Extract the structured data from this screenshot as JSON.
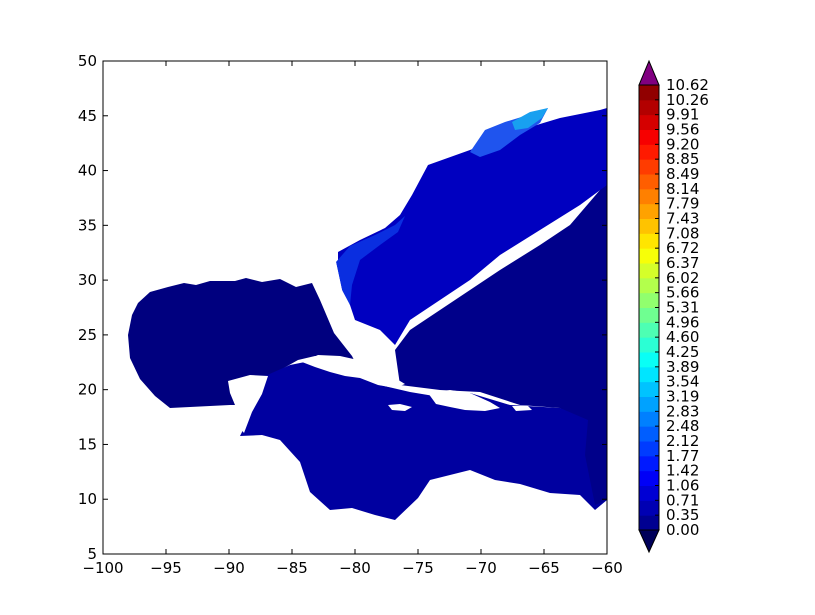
{
  "chart_data": {
    "type": "heatmap",
    "title": "",
    "xlabel": "",
    "ylabel": "",
    "xlim": [
      -100,
      -60
    ],
    "ylim": [
      5,
      50
    ],
    "x_ticks": [
      -100,
      -95,
      -90,
      -85,
      -80,
      -75,
      -70,
      -65,
      -60
    ],
    "y_ticks": [
      5,
      10,
      15,
      20,
      25,
      30,
      35,
      40,
      45,
      50
    ],
    "x_tick_labels": [
      "−100",
      "−95",
      "−90",
      "−85",
      "−80",
      "−75",
      "−70",
      "−65",
      "−60"
    ],
    "y_tick_labels": [
      "5",
      "10",
      "15",
      "20",
      "25",
      "30",
      "35",
      "40",
      "45",
      "50"
    ],
    "colorbar": {
      "colormap": "jet",
      "extend": "both",
      "min": 0.0,
      "max": 10.62,
      "levels": [
        "0.00",
        "0.35",
        "0.71",
        "1.06",
        "1.42",
        "1.77",
        "2.12",
        "2.48",
        "2.83",
        "3.19",
        "3.54",
        "3.89",
        "4.25",
        "4.60",
        "4.96",
        "5.31",
        "5.66",
        "6.02",
        "6.37",
        "6.72",
        "7.08",
        "7.43",
        "7.79",
        "8.14",
        "8.49",
        "8.85",
        "9.20",
        "9.56",
        "9.91",
        "10.26",
        "10.62"
      ],
      "under_color": "#00005a",
      "over_color": "#800080"
    },
    "colors": {
      "background_field": "#00007f",
      "shelf_field": "#0000b8",
      "coastal_field": "#0a2ee0",
      "high_field": "#1aa0f0"
    }
  }
}
